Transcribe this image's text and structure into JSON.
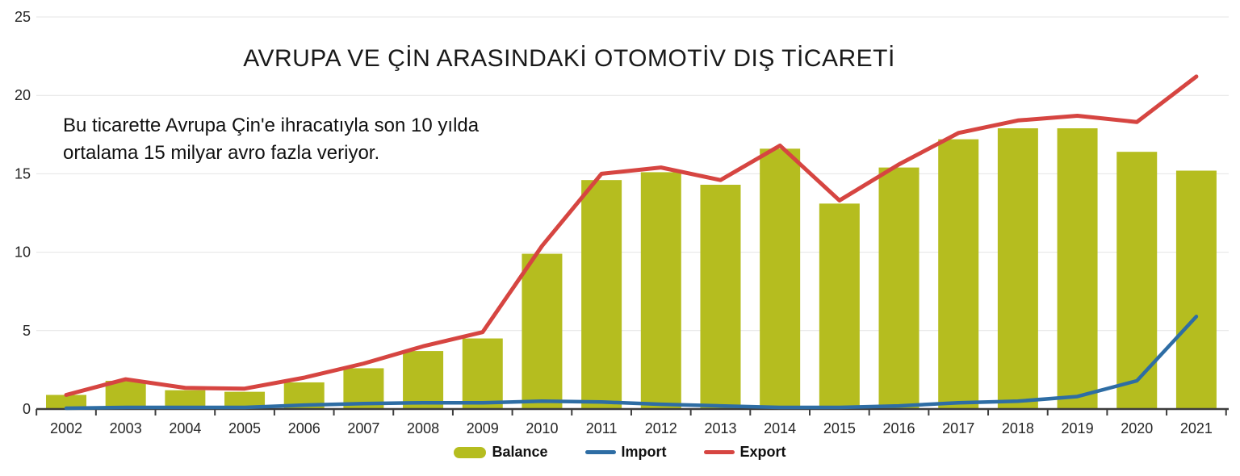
{
  "title": "AVRUPA VE ÇİN ARASINDAKİ OTOMOTİV DIŞ TİCARETİ",
  "annotation": {
    "line1": "Bu ticarette Avrupa Çin'e ihracatıyla son 10 yılda",
    "line2": "ortalama 15 milyar avro fazla veriyor."
  },
  "legend": {
    "items": [
      {
        "label": "Balance",
        "color": "#b5bd1f",
        "type": "bar"
      },
      {
        "label": "Import",
        "color": "#2e6da4",
        "type": "line"
      },
      {
        "label": "Export",
        "color": "#d64541",
        "type": "line"
      }
    ]
  },
  "colors": {
    "bar": "#b5bd1f",
    "import_line": "#2e6da4",
    "export_line": "#d64541",
    "gridline": "#e4e4e4",
    "axis": "#3d3d3d",
    "tick_label": "#262626"
  },
  "chart_data": {
    "type": "bar",
    "subtype": "combo-bar-line",
    "title": "AVRUPA VE ÇİN ARASINDAKİ OTOMOTİV DIŞ TİCARETİ",
    "categories": [
      "2002",
      "2003",
      "2004",
      "2005",
      "2006",
      "2007",
      "2008",
      "2009",
      "2010",
      "2011",
      "2012",
      "2013",
      "2014",
      "2015",
      "2016",
      "2017",
      "2018",
      "2019",
      "2020",
      "2021"
    ],
    "series": [
      {
        "name": "Balance",
        "type": "bar",
        "color": "#b5bd1f",
        "values": [
          0.9,
          1.8,
          1.2,
          1.1,
          1.7,
          2.6,
          3.7,
          4.5,
          9.9,
          14.6,
          15.1,
          14.3,
          16.6,
          13.1,
          15.4,
          17.2,
          17.9,
          17.9,
          16.4,
          15.2
        ]
      },
      {
        "name": "Import",
        "type": "line",
        "color": "#2e6da4",
        "values": [
          0.05,
          0.1,
          0.1,
          0.1,
          0.25,
          0.35,
          0.4,
          0.4,
          0.5,
          0.45,
          0.3,
          0.2,
          0.1,
          0.1,
          0.2,
          0.4,
          0.5,
          0.8,
          1.8,
          5.9
        ]
      },
      {
        "name": "Export",
        "type": "line",
        "color": "#d64541",
        "values": [
          0.9,
          1.9,
          1.35,
          1.3,
          2.0,
          2.9,
          4.0,
          4.9,
          10.4,
          15.0,
          15.4,
          14.6,
          16.8,
          13.3,
          15.6,
          17.6,
          18.4,
          18.7,
          18.3,
          21.2
        ]
      }
    ],
    "xlabel": "",
    "ylabel": "",
    "y_ticks": [
      0,
      5,
      10,
      15,
      20,
      25
    ],
    "ylim": [
      0,
      25
    ],
    "grid": true,
    "legend_position": "bottom"
  }
}
